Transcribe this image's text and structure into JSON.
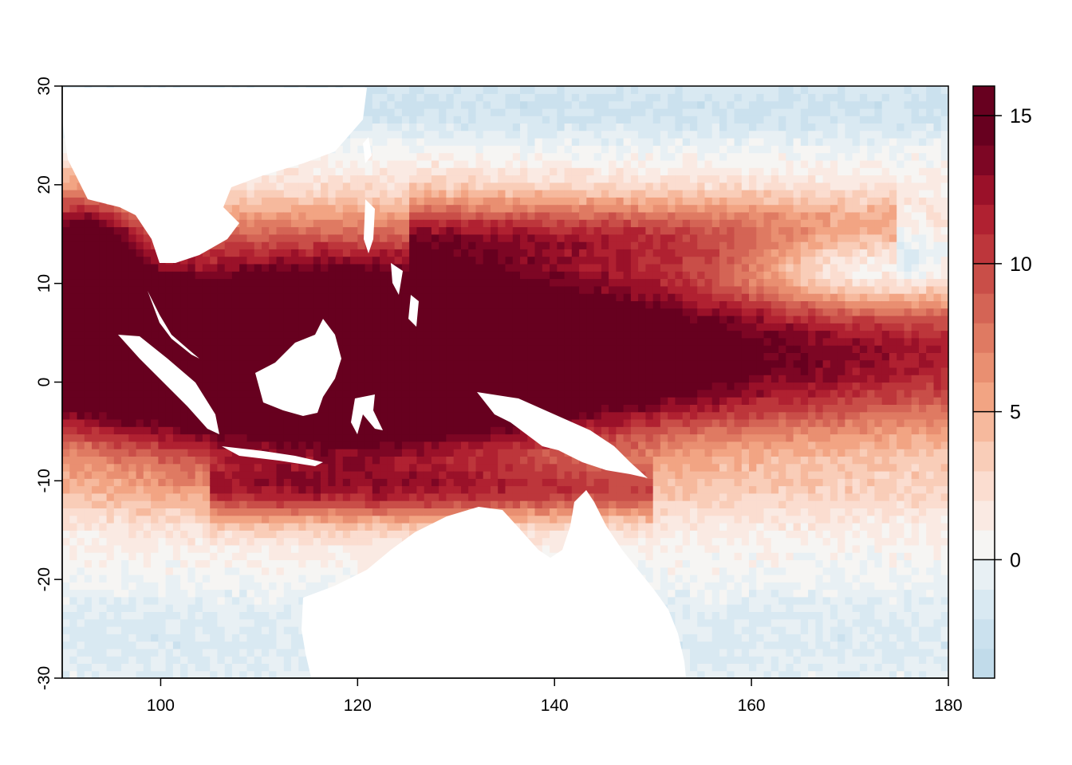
{
  "chart_data": {
    "type": "heatmap",
    "title": "",
    "xlabel": "",
    "ylabel": "",
    "xlim": [
      90,
      180
    ],
    "ylim": [
      -30,
      30
    ],
    "x_ticks": [
      {
        "value": 100,
        "label": "100"
      },
      {
        "value": 120,
        "label": "120"
      },
      {
        "value": 140,
        "label": "140"
      },
      {
        "value": 160,
        "label": "160"
      },
      {
        "value": 180,
        "label": "180"
      }
    ],
    "y_ticks": [
      {
        "value": -30,
        "label": "-30"
      },
      {
        "value": -20,
        "label": "-20"
      },
      {
        "value": -10,
        "label": "-10"
      },
      {
        "value": 0,
        "label": "0"
      },
      {
        "value": 10,
        "label": "10"
      },
      {
        "value": 20,
        "label": "20"
      },
      {
        "value": 30,
        "label": "30"
      }
    ],
    "colorbar": {
      "range": [
        -4,
        16
      ],
      "ticks": [
        {
          "value": 0,
          "label": "0"
        },
        {
          "value": 5,
          "label": "5"
        },
        {
          "value": 10,
          "label": "10"
        },
        {
          "value": 15,
          "label": "15"
        }
      ],
      "breaks": [
        -4,
        -3,
        -2,
        -1,
        0,
        1,
        2,
        3,
        4,
        5,
        6,
        7,
        8,
        9,
        10,
        11,
        12,
        13,
        14,
        15,
        16
      ],
      "colors": [
        "#c1dbea",
        "#cbe1ee",
        "#d9e9f2",
        "#e8f0f4",
        "#f6f5f3",
        "#faeae3",
        "#fbddd0",
        "#f9cdb8",
        "#f6b99d",
        "#f2a483",
        "#e98f71",
        "#df7a62",
        "#d46455",
        "#c94e48",
        "#bd363b",
        "#b02131",
        "#9a1129",
        "#7d0624",
        "#67001f",
        "#67001f"
      ]
    },
    "land_mask_color": "#ffffff",
    "field_description_values": "2D gridded field on lon 90-180, lat -30-30; strongest positive anomalies (>15) over Maritime Continent and equatorial West Pacific warm pool 0-20N; negative values (-1 to -3) in NE subtropical Pacific near 10-20N,160-180E and along NW Australian coast"
  }
}
